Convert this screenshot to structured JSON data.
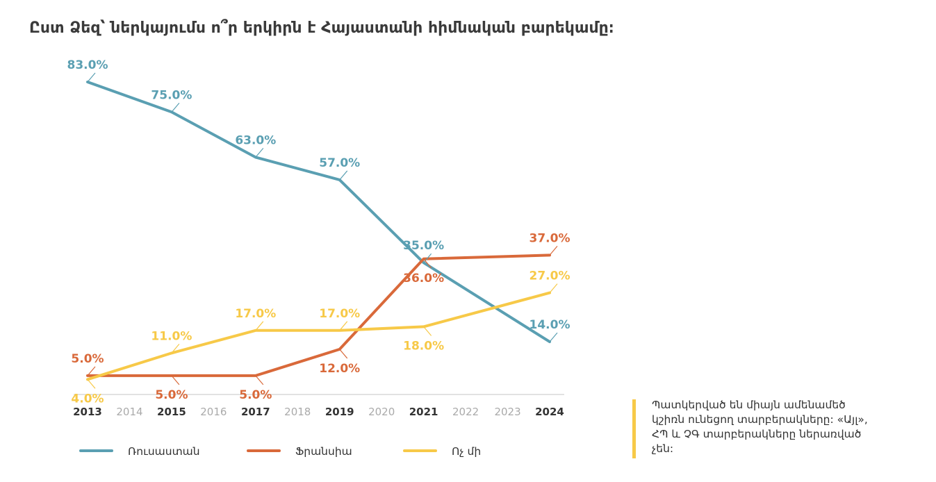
{
  "title": "Ըստ Ձեզ՝ ներկայումս ո՞ր երկիրն է Հայաստանի հիմնական բարեկամը։",
  "note": "Պատկերված են միայն ամենամեծ կշիռն ունեցող տարբերակները: «Այլ», ՀՊ և ՉԳ տարբերակները ներառված չեն:",
  "colors": {
    "note_bar": "#f7c948",
    "axis": "#d9d9d9",
    "tick_bold": "#333333",
    "tick_light": "#aaaaaa"
  },
  "chart_data": {
    "type": "line",
    "x": [
      2013,
      2014,
      2015,
      2016,
      2017,
      2018,
      2019,
      2020,
      2021,
      2022,
      2023,
      2024
    ],
    "x_bold": [
      2013,
      2015,
      2017,
      2019,
      2021,
      2024
    ],
    "ylim": [
      0,
      90
    ],
    "grid": false,
    "legend_position": "bottom",
    "series": [
      {
        "name": "Ռուսաստան",
        "color": "#5a9fb2",
        "points": [
          [
            2013,
            83
          ],
          [
            2015,
            75
          ],
          [
            2017,
            63
          ],
          [
            2019,
            57
          ],
          [
            2021,
            35
          ],
          [
            2024,
            14
          ]
        ],
        "labels": [
          "83.0%",
          "75.0%",
          "63.0%",
          "57.0%",
          "35.0%",
          "14.0%"
        ],
        "label_side": [
          "above",
          "above",
          "above",
          "above",
          "above",
          "above"
        ]
      },
      {
        "name": "Ֆրանսիա",
        "color": "#d9693a",
        "points": [
          [
            2013,
            5
          ],
          [
            2015,
            5
          ],
          [
            2017,
            5
          ],
          [
            2019,
            12
          ],
          [
            2021,
            36
          ],
          [
            2024,
            37
          ]
        ],
        "labels": [
          "5.0%",
          "5.0%",
          "5.0%",
          "12.0%",
          "36.0%",
          "37.0%"
        ],
        "label_side": [
          "above",
          "below",
          "below",
          "below",
          "below",
          "above"
        ]
      },
      {
        "name": "Ոչ մի",
        "color": "#f7c948",
        "points": [
          [
            2013,
            4
          ],
          [
            2015,
            11
          ],
          [
            2017,
            17
          ],
          [
            2019,
            17
          ],
          [
            2021,
            18
          ],
          [
            2024,
            27
          ]
        ],
        "labels": [
          "4.0%",
          "11.0%",
          "17.0%",
          "17.0%",
          "18.0%",
          "27.0%"
        ],
        "label_side": [
          "below",
          "above",
          "above",
          "above",
          "below",
          "above"
        ]
      }
    ]
  }
}
